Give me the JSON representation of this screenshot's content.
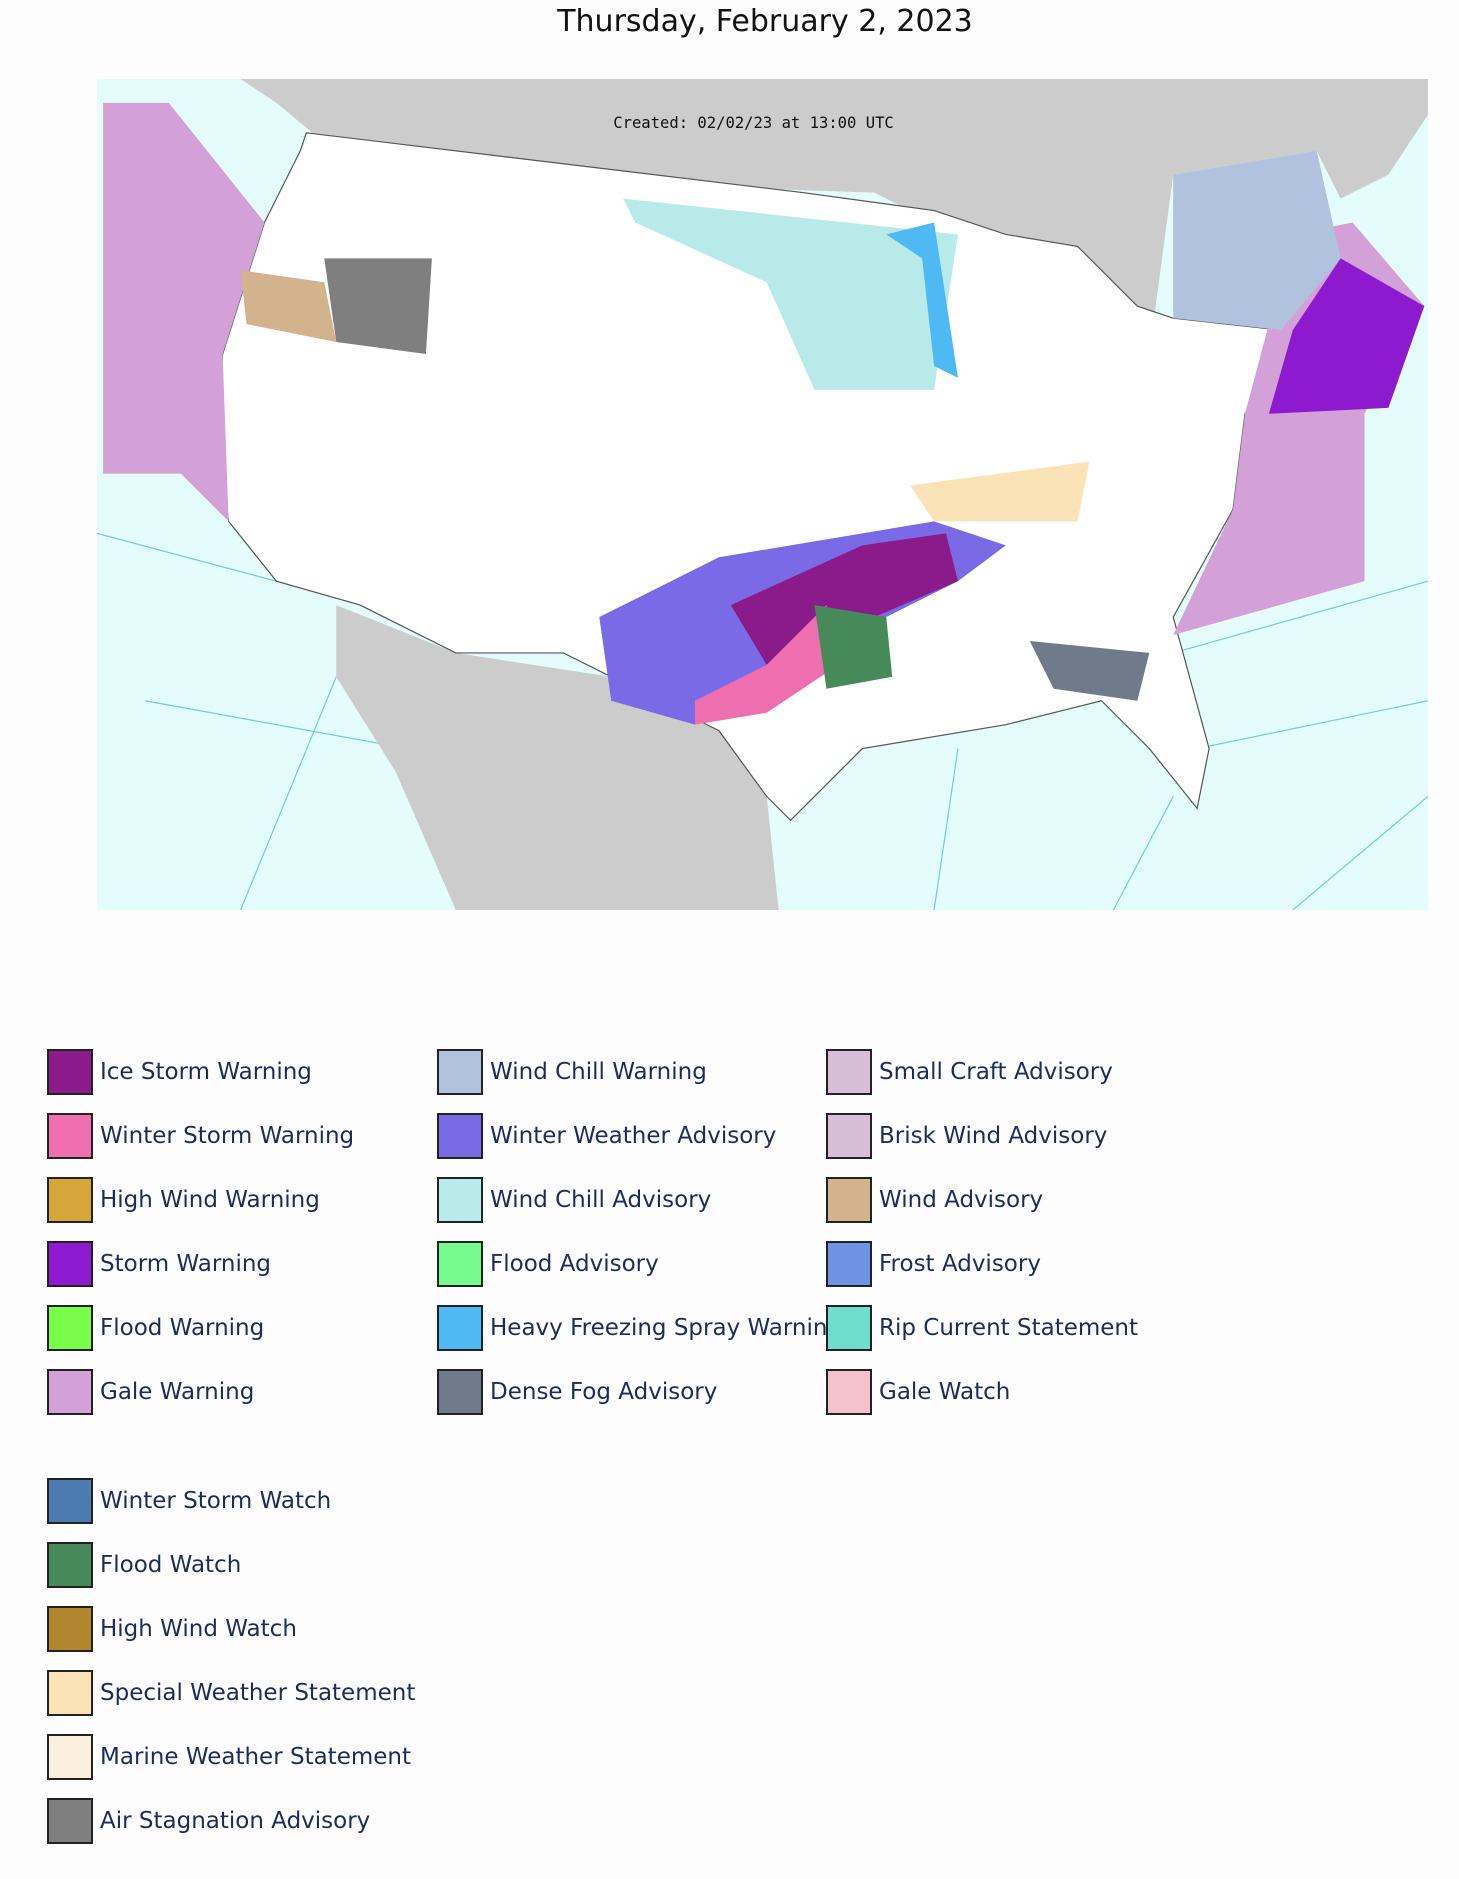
{
  "title": "Thursday, February 2, 2023",
  "map": {
    "created_label": "Created: 02/02/23 at 13:00 UTC"
  },
  "legend": {
    "columns": [
      [
        {
          "label": "Ice Storm Warning",
          "color": "#8b1a8b"
        },
        {
          "label": "Winter Storm Warning",
          "color": "#ee6fb0"
        },
        {
          "label": "High Wind Warning",
          "color": "#d4a63c"
        },
        {
          "label": "Storm Warning",
          "color": "#8e1ad0"
        },
        {
          "label": "Flood Warning",
          "color": "#7afc4a"
        },
        {
          "label": "Gale Warning",
          "color": "#d3a0d8"
        }
      ],
      [
        {
          "label": "Wind Chill Warning",
          "color": "#b0c2de"
        },
        {
          "label": "Winter Weather Advisory",
          "color": "#7b6ae6"
        },
        {
          "label": "Wind Chill Advisory",
          "color": "#b9eaea"
        },
        {
          "label": "Flood Advisory",
          "color": "#76fa8e"
        },
        {
          "label": "Heavy Freezing Spray Warning",
          "color": "#4fb9f4"
        },
        {
          "label": "Dense Fog Advisory",
          "color": "#6f7a8a"
        }
      ],
      [
        {
          "label": "Small Craft Advisory",
          "color": "#d6bfd6"
        },
        {
          "label": "Brisk Wind Advisory",
          "color": "#d6bfd6"
        },
        {
          "label": "Wind Advisory",
          "color": "#d2b38e"
        },
        {
          "label": "Frost Advisory",
          "color": "#6e93e4"
        },
        {
          "label": "Rip Current Statement",
          "color": "#6fdccc"
        },
        {
          "label": "Gale Watch",
          "color": "#f5c2cc"
        }
      ]
    ],
    "watches": [
      {
        "label": "Winter Storm Watch",
        "color": "#4d7bb0"
      },
      {
        "label": "Flood Watch",
        "color": "#478a5a"
      },
      {
        "label": "High Wind Watch",
        "color": "#b0872e"
      },
      {
        "label": "Special Weather Statement",
        "color": "#fbe3b8"
      },
      {
        "label": "Marine Weather Statement",
        "color": "#fbefdd"
      },
      {
        "label": "Air Stagnation Advisory",
        "color": "#7f7f7f"
      }
    ]
  }
}
